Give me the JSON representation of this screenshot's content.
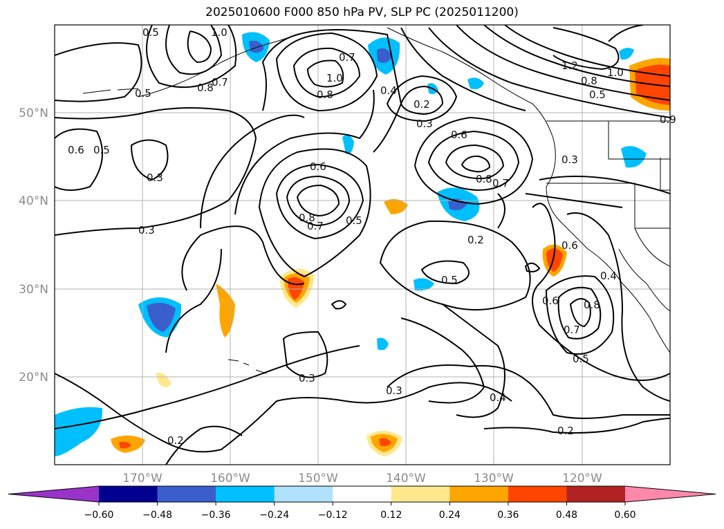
{
  "title": "2025010600 F000 850 hPa PV, SLP PC (2025011200)",
  "map": {
    "lat_labels": [
      "50°N",
      "40°N",
      "30°N",
      "20°N"
    ],
    "lon_labels": [
      "170°W",
      "160°W",
      "150°W",
      "140°W",
      "130°W",
      "120°W"
    ],
    "grid": true,
    "contour_labels": [
      "0.5",
      "1.0",
      "0.8",
      "0.7",
      "0.5",
      "1.0",
      "0.7",
      "0.8",
      "0.4",
      "0.2",
      "0.3",
      "0.6",
      "0.8",
      "0.7",
      "1.2",
      "1.0",
      "0.8",
      "0.5",
      "0.6",
      "0.5",
      "0.3",
      "0.6",
      "0.8",
      "0.7",
      "0.5",
      "0.3",
      "0.3",
      "0.2",
      "0.5",
      "0.6",
      "0.8",
      "0.7",
      "0.4",
      "0.5",
      "0.3",
      "0.3",
      "0.4",
      "0.2",
      "0.2",
      "0.6",
      "0.9"
    ]
  },
  "colorbar": {
    "ticks": [
      "−0.60",
      "−0.48",
      "−0.36",
      "−0.24",
      "−0.12",
      "0.12",
      "0.24",
      "0.36",
      "0.48",
      "0.60"
    ],
    "colors": [
      "#9a34c8",
      "#000090",
      "#3a5fcd",
      "#00bfff",
      "#b0e2ff",
      "#ffffff",
      "#ffe88c",
      "#ffa500",
      "#ff4500",
      "#b22222",
      "#ff88aa"
    ],
    "extend": "both"
  }
}
